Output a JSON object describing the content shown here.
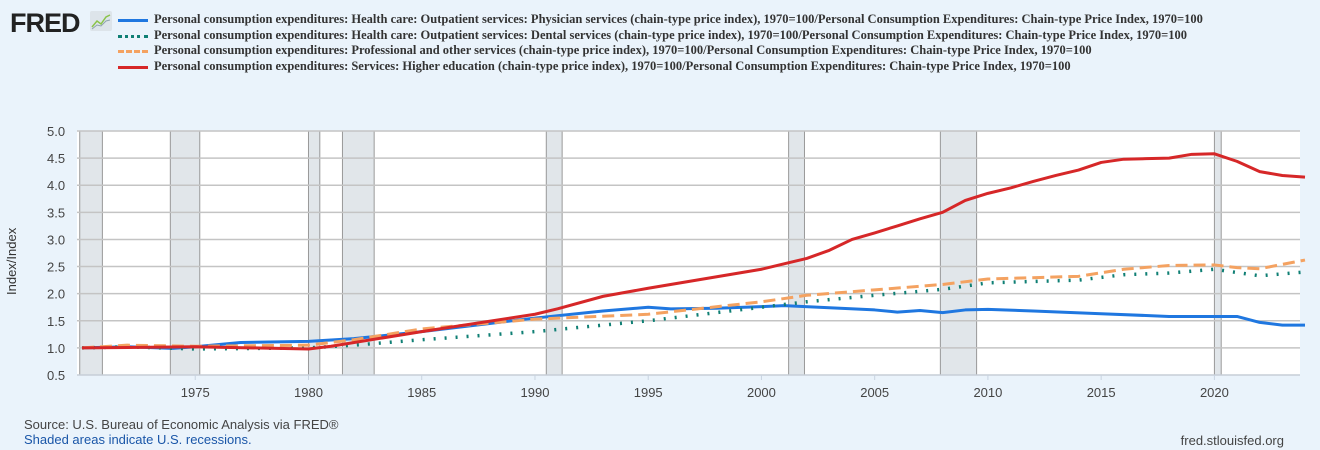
{
  "header": {
    "logo": "FRED"
  },
  "footer": {
    "source": "Source: U.S. Bureau of Economic Analysis via FRED®",
    "recessions_note": "Shaded areas indicate U.S. recessions.",
    "site": "fred.stlouisfed.org"
  },
  "chart_data": {
    "type": "line",
    "ylabel": "Index/Index",
    "ylim": [
      0.5,
      5.0
    ],
    "yticks": [
      "0.5",
      "1.0",
      "1.5",
      "2.0",
      "2.5",
      "3.0",
      "3.5",
      "4.0",
      "4.5",
      "5.0"
    ],
    "xlim": [
      1970,
      2024
    ],
    "xticks": [
      "1975",
      "1980",
      "1985",
      "1990",
      "1995",
      "2000",
      "2005",
      "2010",
      "2015",
      "2020"
    ],
    "grid": true,
    "legend_position": "top",
    "recessions": [
      [
        1969.9,
        1970.9
      ],
      [
        1973.9,
        1975.2
      ],
      [
        1980.0,
        1980.5
      ],
      [
        1981.5,
        1982.9
      ],
      [
        1990.5,
        1991.2
      ],
      [
        2001.2,
        2001.9
      ],
      [
        2007.9,
        2009.5
      ],
      [
        2020.0,
        2020.3
      ]
    ],
    "series": [
      {
        "name": "Personal consumption expenditures: Health care: Outpatient services: Physician services (chain-type price index), 1970=100/Personal Consumption Expenditures: Chain-type Price Index, 1970=100",
        "color": "#1f77e0",
        "style": "solid",
        "x": [
          1970,
          1972,
          1974,
          1975,
          1977,
          1980,
          1982,
          1985,
          1988,
          1990,
          1993,
          1995,
          1996,
          1998,
          2000,
          2001,
          2003,
          2005,
          2006,
          2007,
          2008,
          2009,
          2010,
          2012,
          2015,
          2018,
          2021,
          2022,
          2023,
          2024
        ],
        "y": [
          1.0,
          1.02,
          0.99,
          1.02,
          1.1,
          1.12,
          1.17,
          1.3,
          1.45,
          1.55,
          1.68,
          1.75,
          1.72,
          1.73,
          1.76,
          1.78,
          1.74,
          1.7,
          1.66,
          1.69,
          1.65,
          1.7,
          1.71,
          1.68,
          1.63,
          1.58,
          1.58,
          1.47,
          1.42,
          1.42
        ]
      },
      {
        "name": "Personal consumption expenditures: Health care: Outpatient services: Dental services (chain-type price index), 1970=100/Personal Consumption Expenditures: Chain-type Price Index, 1970=100",
        "color": "#0f7f74",
        "style": "dotted",
        "x": [
          1970,
          1972,
          1975,
          1980,
          1982,
          1985,
          1990,
          1995,
          2000,
          2002,
          2005,
          2008,
          2010,
          2014,
          2016,
          2018,
          2020,
          2022,
          2024
        ],
        "y": [
          1.0,
          1.02,
          0.98,
          1.0,
          1.05,
          1.15,
          1.3,
          1.5,
          1.75,
          1.85,
          1.97,
          2.08,
          2.2,
          2.25,
          2.35,
          2.38,
          2.45,
          2.33,
          2.4
        ]
      },
      {
        "name": "Personal consumption expenditures: Professional and other services (chain-type price index), 1970=100/Personal Consumption Expenditures: Chain-type Price Index, 1970=100",
        "color": "#f4a261",
        "style": "dashed",
        "x": [
          1970,
          1972,
          1975,
          1980,
          1982,
          1985,
          1990,
          1995,
          2000,
          2002,
          2005,
          2008,
          2010,
          2014,
          2016,
          2018,
          2020,
          2021,
          2022,
          2024
        ],
        "y": [
          1.0,
          1.05,
          1.03,
          1.05,
          1.15,
          1.35,
          1.53,
          1.62,
          1.85,
          1.97,
          2.07,
          2.17,
          2.27,
          2.32,
          2.45,
          2.52,
          2.53,
          2.48,
          2.46,
          2.62
        ]
      },
      {
        "name": "Personal consumption expenditures: Services: Higher education (chain-type price index), 1970=100/Personal Consumption Expenditures: Chain-type Price Index, 1970=100",
        "color": "#d62728",
        "style": "solid",
        "x": [
          1970,
          1975,
          1980,
          1981,
          1985,
          1990,
          1991,
          1993,
          1995,
          2000,
          2001,
          2002,
          2003,
          2004,
          2005,
          2006,
          2007,
          2008,
          2009,
          2010,
          2011,
          2012,
          2013,
          2014,
          2015,
          2016,
          2017,
          2018,
          2019,
          2020,
          2021,
          2022,
          2023,
          2024
        ],
        "y": [
          1.0,
          1.02,
          0.98,
          1.03,
          1.3,
          1.62,
          1.72,
          1.95,
          2.1,
          2.45,
          2.55,
          2.65,
          2.8,
          3.0,
          3.12,
          3.25,
          3.38,
          3.5,
          3.72,
          3.85,
          3.95,
          4.07,
          4.18,
          4.28,
          4.42,
          4.48,
          4.49,
          4.5,
          4.57,
          4.58,
          4.44,
          4.25,
          4.18,
          4.15
        ]
      }
    ]
  }
}
